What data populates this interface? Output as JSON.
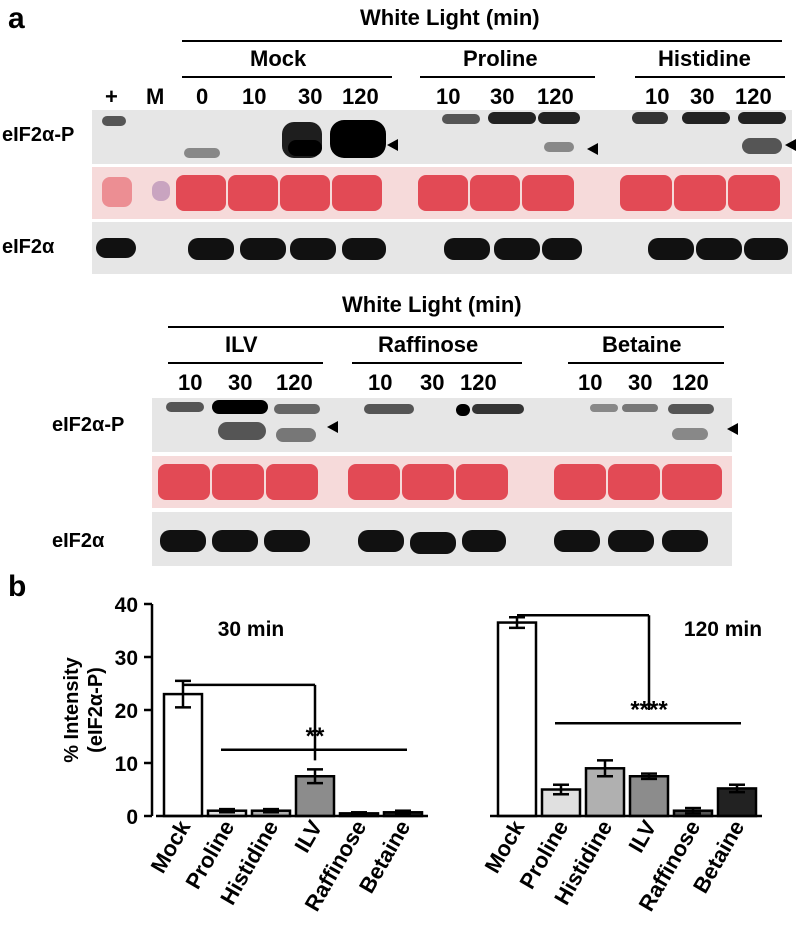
{
  "panel_a": {
    "letter": "a",
    "top": {
      "header": "White Light (min)",
      "groups": [
        "Mock",
        "Proline",
        "Histidine"
      ],
      "lanes": [
        "+",
        "M",
        "0",
        "10",
        "30",
        "120",
        "10",
        "30",
        "120",
        "10",
        "30",
        "120"
      ],
      "row_labels": [
        "eIF2α-P",
        "eIF2α"
      ]
    },
    "bottom": {
      "header": "White Light (min)",
      "groups": [
        "ILV",
        "Raffinose",
        "Betaine"
      ],
      "lanes": [
        "10",
        "30",
        "120",
        "10",
        "30",
        "120",
        "10",
        "30",
        "120"
      ],
      "row_labels": [
        "eIF2α-P",
        "eIF2α"
      ]
    }
  },
  "panel_b": {
    "letter": "b"
  },
  "chart_data": {
    "type": "bar",
    "ylabel": "% Intensity (eIF2α-P)",
    "ylim": [
      0,
      40
    ],
    "yticks": [
      0,
      10,
      20,
      30,
      40
    ],
    "groups": [
      {
        "label": "30 min",
        "categories": [
          "Mock",
          "Proline",
          "Histidine",
          "ILV",
          "Raffinose",
          "Betaine"
        ],
        "values": [
          23,
          1,
          1,
          7.5,
          0.5,
          0.7
        ],
        "errors": [
          2.5,
          0.3,
          0.3,
          1.3,
          0.2,
          0.3
        ],
        "significance": "**"
      },
      {
        "label": "120 min",
        "categories": [
          "Mock",
          "Proline",
          "Histidine",
          "ILV",
          "Raffinose",
          "Betaine"
        ],
        "values": [
          36.5,
          5,
          9,
          7.5,
          1,
          5.2
        ],
        "errors": [
          1,
          0.9,
          1.5,
          0.5,
          0.5,
          0.7
        ],
        "significance": "****"
      }
    ],
    "colors": [
      "#ffffff",
      "#e0e0e0",
      "#b0b0b0",
      "#8c8c8c",
      "#555555",
      "#222222"
    ]
  }
}
